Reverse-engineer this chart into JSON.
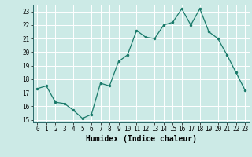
{
  "x": [
    0,
    1,
    2,
    3,
    4,
    5,
    6,
    7,
    8,
    9,
    10,
    11,
    12,
    13,
    14,
    15,
    16,
    17,
    18,
    19,
    20,
    21,
    22,
    23
  ],
  "y": [
    17.3,
    17.5,
    16.3,
    16.2,
    15.7,
    15.1,
    15.4,
    17.7,
    17.5,
    19.3,
    19.8,
    21.6,
    21.1,
    21.0,
    22.0,
    22.2,
    23.2,
    22.0,
    23.2,
    21.5,
    21.0,
    19.8,
    18.5,
    17.2
  ],
  "xlabel": "Humidex (Indice chaleur)",
  "ylim": [
    14.8,
    23.5
  ],
  "xlim": [
    -0.5,
    23.5
  ],
  "yticks": [
    15,
    16,
    17,
    18,
    19,
    20,
    21,
    22,
    23
  ],
  "xticks": [
    0,
    1,
    2,
    3,
    4,
    5,
    6,
    7,
    8,
    9,
    10,
    11,
    12,
    13,
    14,
    15,
    16,
    17,
    18,
    19,
    20,
    21,
    22,
    23
  ],
  "line_color": "#1a7a6a",
  "marker_color": "#1a7a6a",
  "bg_color": "#cceae6",
  "grid_color": "#ffffff",
  "tick_label_fontsize": 5.5,
  "xlabel_fontsize": 7.0
}
